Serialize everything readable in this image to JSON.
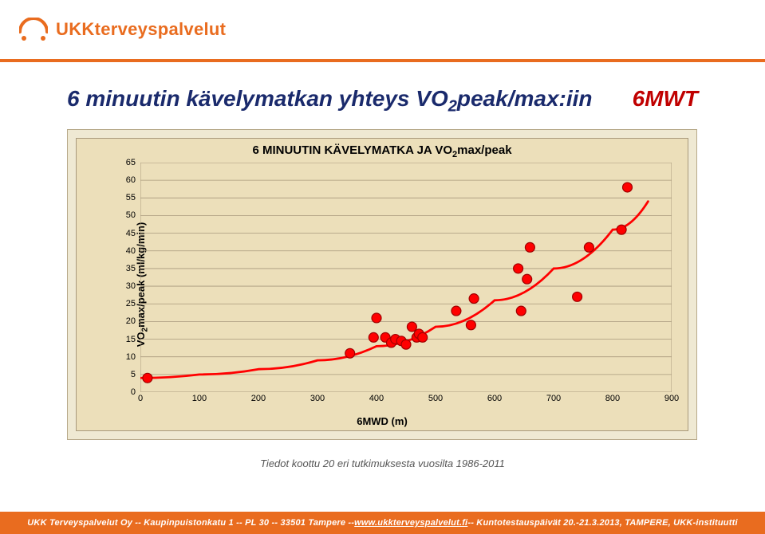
{
  "brand": {
    "name": "UKKterveyspalvelut",
    "color": "#e96c1f",
    "logo_glyph_color": "#e96c1f"
  },
  "header": {
    "rule_color": "#e96c1f"
  },
  "title": {
    "prefix": "6 minuutin kävelymatkan yhteys VO",
    "sub": "2",
    "suffix": "peak/max:iin",
    "color": "#1a2a6c"
  },
  "badge": {
    "text": "6MWT",
    "color": "#c00000"
  },
  "chart": {
    "type": "scatter",
    "frame_bg": "#efe9d3",
    "frame_border": "#b7a98a",
    "plot_bg": "#ecdfba",
    "plot_border": "#a8997c",
    "grid_color": "#a8997c",
    "title_prefix": "6 MINUUTIN KÄVELYMATKA JA VO",
    "title_sub": "2",
    "title_suffix": "max/peak",
    "title_fontsize": 15,
    "xlabel": "6MWD (m)",
    "ylabel_prefix": "VO",
    "ylabel_sub": "2",
    "ylabel_suffix": "max/peak (ml/kg/min)",
    "xlim": [
      0,
      900
    ],
    "ylim": [
      0,
      65
    ],
    "x_ticks": [
      0,
      100,
      200,
      300,
      400,
      500,
      600,
      700,
      800,
      900
    ],
    "y_ticks": [
      0,
      5,
      10,
      15,
      20,
      25,
      30,
      35,
      40,
      45,
      50,
      55,
      60,
      65
    ],
    "label_fontsize": 13,
    "tick_fontsize": 11,
    "marker": {
      "radius": 6,
      "fill": "#ff0000",
      "stroke": "#a00000",
      "stroke_width": 1.2
    },
    "trend": {
      "color": "#ff0000",
      "width": 2.8
    },
    "points": [
      {
        "x": 12,
        "y": 4
      },
      {
        "x": 355,
        "y": 11
      },
      {
        "x": 395,
        "y": 15.5
      },
      {
        "x": 400,
        "y": 21
      },
      {
        "x": 415,
        "y": 15.5
      },
      {
        "x": 425,
        "y": 14
      },
      {
        "x": 432,
        "y": 15
      },
      {
        "x": 442,
        "y": 14.5
      },
      {
        "x": 450,
        "y": 13.5
      },
      {
        "x": 460,
        "y": 18.5
      },
      {
        "x": 468,
        "y": 15.5
      },
      {
        "x": 472,
        "y": 16.5
      },
      {
        "x": 478,
        "y": 15.5
      },
      {
        "x": 535,
        "y": 23
      },
      {
        "x": 560,
        "y": 19
      },
      {
        "x": 565,
        "y": 26.5
      },
      {
        "x": 640,
        "y": 35
      },
      {
        "x": 645,
        "y": 23
      },
      {
        "x": 655,
        "y": 32
      },
      {
        "x": 660,
        "y": 41
      },
      {
        "x": 740,
        "y": 27
      },
      {
        "x": 760,
        "y": 41
      },
      {
        "x": 815,
        "y": 46
      },
      {
        "x": 825,
        "y": 58
      }
    ],
    "trend_points": [
      {
        "x": 0,
        "y": 4
      },
      {
        "x": 100,
        "y": 5
      },
      {
        "x": 200,
        "y": 6.5
      },
      {
        "x": 300,
        "y": 9
      },
      {
        "x": 400,
        "y": 13
      },
      {
        "x": 500,
        "y": 18.5
      },
      {
        "x": 600,
        "y": 26
      },
      {
        "x": 700,
        "y": 35
      },
      {
        "x": 800,
        "y": 46
      },
      {
        "x": 860,
        "y": 54
      }
    ]
  },
  "subcaption": "Tiedot koottu 20 eri tutkimuksesta vuosilta 1986-2011",
  "footer": {
    "bg": "#e96c1f",
    "text_a": "UKK Terveyspalvelut Oy -- Kaupinpuistonkatu 1 -- PL 30 -- 33501 Tampere -- ",
    "link": "www.ukkterveyspalvelut.fi",
    "text_b": " -- Kuntotestauspäivät 20.-21.3.2013, TAMPERE, UKK-instituutti"
  }
}
